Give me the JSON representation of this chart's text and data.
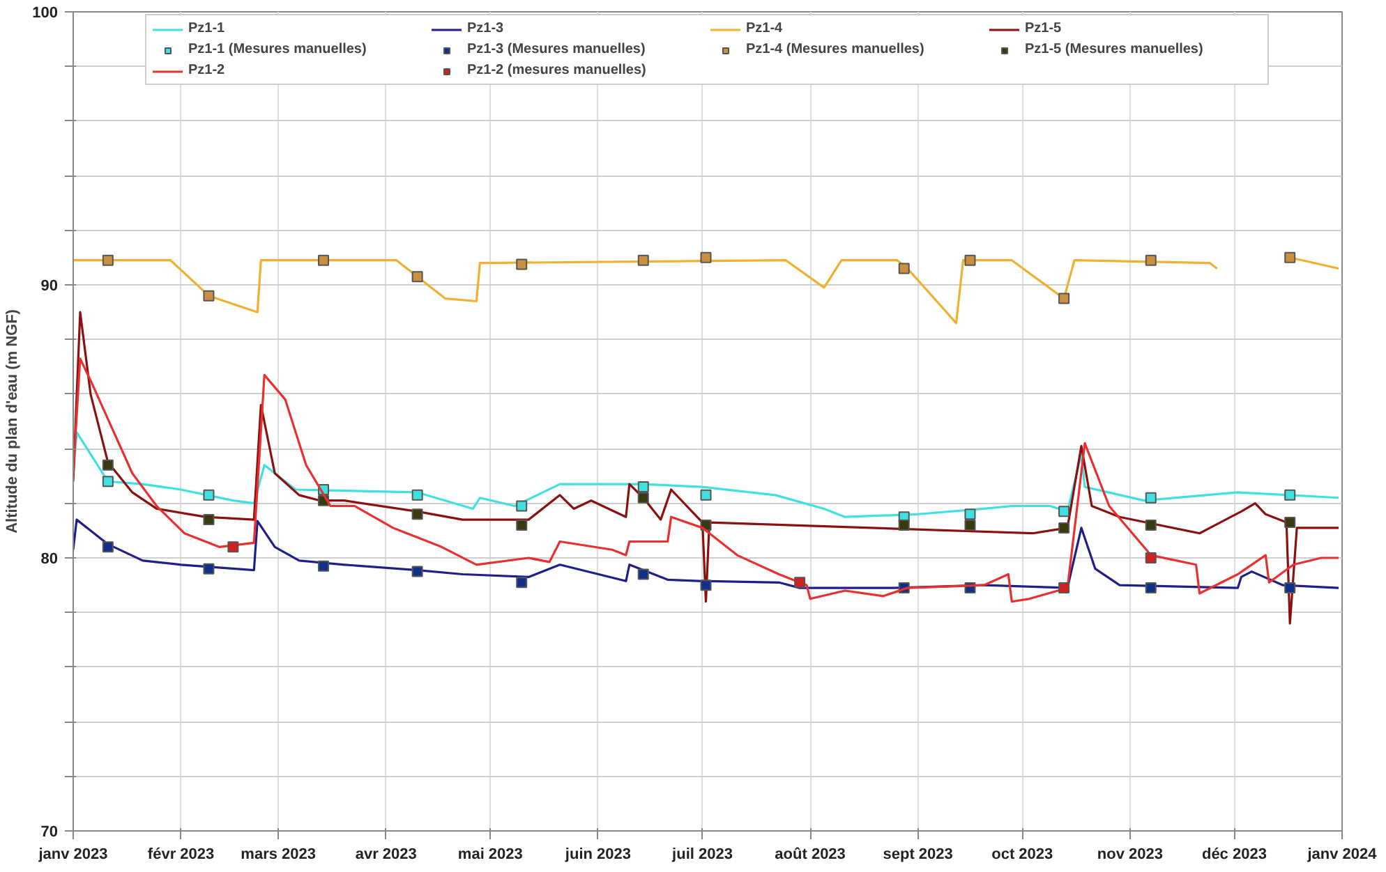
{
  "chart_data": {
    "type": "line",
    "ylabel": "Altitude du plan d'eau (m NGF)",
    "xlim": [
      "2023-01-01",
      "2024-01-01"
    ],
    "ylim": [
      70,
      100
    ],
    "xticks": [
      {
        "value": "2023-01-01",
        "label": "janv 2023"
      },
      {
        "value": "2023-02-01",
        "label": "févr 2023"
      },
      {
        "value": "2023-03-01",
        "label": "mars 2023"
      },
      {
        "value": "2023-04-01",
        "label": "avr 2023"
      },
      {
        "value": "2023-05-01",
        "label": "mai 2023"
      },
      {
        "value": "2023-06-01",
        "label": "juin 2023"
      },
      {
        "value": "2023-07-01",
        "label": "juil 2023"
      },
      {
        "value": "2023-08-01",
        "label": "août 2023"
      },
      {
        "value": "2023-09-01",
        "label": "sept 2023"
      },
      {
        "value": "2023-10-01",
        "label": "oct 2023"
      },
      {
        "value": "2023-11-01",
        "label": "nov 2023"
      },
      {
        "value": "2023-12-01",
        "label": "déc 2023"
      },
      {
        "value": "2024-01-01",
        "label": "janv 2024"
      }
    ],
    "yticks": [
      70,
      {
        "value": 72,
        "label": null
      },
      {
        "value": 74,
        "label": null
      },
      {
        "value": 76,
        "label": null
      },
      {
        "value": 78,
        "label": null
      },
      80,
      {
        "value": 82,
        "label": null
      },
      {
        "value": 84,
        "label": null
      },
      {
        "value": 86,
        "label": null
      },
      {
        "value": 88,
        "label": null
      },
      90,
      {
        "value": 92,
        "label": null
      },
      {
        "value": 94,
        "label": null
      },
      {
        "value": 96,
        "label": null
      },
      {
        "value": 98,
        "label": null
      },
      100
    ],
    "grid": true,
    "legend": "top",
    "line_style": "solid",
    "series": [
      {
        "name": "Pz1-1",
        "marker": "none",
        "color": "#40e0e0",
        "x": [
          "2023-01-01",
          "2023-01-02",
          "2023-01-11",
          "2023-01-21",
          "2023-02-01",
          "2023-02-16",
          "2023-02-22",
          "2023-02-25",
          "2023-03-06",
          "2023-04-10",
          "2023-04-26",
          "2023-04-28",
          "2023-05-08",
          "2023-05-21",
          "2023-06-14",
          "2023-07-01",
          "2023-07-22",
          "2023-08-05",
          "2023-08-11",
          "2023-09-01",
          "2023-09-20",
          "2023-09-28",
          "2023-10-09",
          "2023-10-14",
          "2023-10-18",
          "2023-10-19",
          "2023-11-05",
          "2023-12-02",
          "2023-12-17",
          "2023-12-31"
        ],
        "values": [
          83.0,
          84.6,
          82.8,
          82.7,
          82.5,
          82.1,
          82.0,
          83.4,
          82.5,
          82.4,
          81.8,
          82.2,
          81.9,
          82.7,
          82.7,
          82.6,
          82.3,
          81.8,
          81.5,
          81.6,
          81.8,
          81.9,
          81.9,
          81.7,
          83.8,
          82.6,
          82.1,
          82.4,
          82.3,
          82.2
        ]
      },
      {
        "name": "Pz1-3",
        "marker": "none",
        "color": "#1f1f8a",
        "x": [
          "2023-01-01",
          "2023-01-02",
          "2023-01-11",
          "2023-01-21",
          "2023-02-01",
          "2023-02-22",
          "2023-02-23",
          "2023-02-28",
          "2023-03-07",
          "2023-03-20",
          "2023-04-10",
          "2023-04-23",
          "2023-05-12",
          "2023-05-21",
          "2023-06-09",
          "2023-06-10",
          "2023-06-21",
          "2023-07-01",
          "2023-07-23",
          "2023-07-29",
          "2023-08-25",
          "2023-09-20",
          "2023-10-14",
          "2023-10-18",
          "2023-10-22",
          "2023-10-29",
          "2023-12-02",
          "2023-12-03",
          "2023-12-06",
          "2023-12-15",
          "2023-12-31"
        ],
        "values": [
          80.3,
          81.4,
          80.5,
          79.9,
          79.75,
          79.55,
          81.35,
          80.4,
          79.9,
          79.75,
          79.55,
          79.4,
          79.3,
          79.75,
          79.15,
          79.75,
          79.2,
          79.15,
          79.1,
          78.9,
          78.9,
          79.0,
          78.9,
          81.1,
          79.6,
          79.0,
          78.9,
          79.3,
          79.5,
          79.0,
          78.9
        ]
      },
      {
        "name": "Pz1-4",
        "marker": "none",
        "color": "#f0b030",
        "x": [
          "2023-01-01",
          "2023-01-29",
          "2023-02-09",
          "2023-02-23",
          "2023-02-24",
          "2023-04-04",
          "2023-04-10",
          "2023-04-18",
          "2023-04-27",
          "2023-04-28",
          "2023-07-25",
          "2023-08-05",
          "2023-08-10",
          "2023-08-26",
          "2023-08-29",
          "2023-09-12",
          "2023-09-14",
          "2023-09-28",
          "2023-10-13",
          "2023-10-16",
          "2023-11-24",
          "2023-11-26",
          "2023-12-01",
          "2023-12-17",
          "2023-12-31"
        ],
        "values": [
          90.9,
          90.9,
          89.6,
          89.0,
          90.9,
          90.9,
          90.3,
          89.5,
          89.4,
          90.8,
          90.9,
          89.9,
          90.9,
          90.9,
          90.6,
          88.6,
          90.9,
          90.9,
          89.5,
          90.9,
          90.8,
          90.6,
          null,
          91.0,
          90.6
        ]
      },
      {
        "name": "Pz1-5",
        "marker": "none",
        "color": "#8b1010",
        "x": [
          "2023-01-01",
          "2023-01-03",
          "2023-01-06",
          "2023-01-11",
          "2023-01-18",
          "2023-01-25",
          "2023-02-08",
          "2023-02-22",
          "2023-02-24",
          "2023-02-28",
          "2023-03-07",
          "2023-03-13",
          "2023-03-20",
          "2023-04-10",
          "2023-04-23",
          "2023-05-12",
          "2023-05-21",
          "2023-05-25",
          "2023-05-30",
          "2023-06-09",
          "2023-06-10",
          "2023-06-14",
          "2023-06-19",
          "2023-06-22",
          "2023-07-01",
          "2023-07-02",
          "2023-07-03",
          "2023-10-04",
          "2023-10-14",
          "2023-10-18",
          "2023-10-21",
          "2023-10-29",
          "2023-11-21",
          "2023-12-03",
          "2023-12-07",
          "2023-12-10",
          "2023-12-16",
          "2023-12-17",
          "2023-12-19",
          "2023-12-31"
        ],
        "values": [
          82.8,
          89.0,
          86.0,
          83.5,
          82.4,
          81.8,
          81.5,
          81.4,
          85.6,
          83.1,
          82.3,
          82.1,
          82.1,
          81.7,
          81.4,
          81.4,
          82.3,
          81.8,
          82.1,
          81.5,
          82.7,
          82.2,
          81.4,
          82.5,
          81.3,
          78.4,
          81.3,
          80.9,
          81.1,
          84.1,
          81.9,
          81.5,
          80.9,
          81.7,
          82.0,
          81.6,
          81.3,
          77.6,
          81.1,
          81.1
        ]
      },
      {
        "name": "Pz1-1 (Mesures manuelles)",
        "type": "scatter",
        "marker": "square",
        "color": "#40e0e0",
        "x": [
          "2023-01-11",
          "2023-02-09",
          "2023-03-14",
          "2023-04-10",
          "2023-05-10",
          "2023-06-14",
          "2023-07-02",
          "2023-08-28",
          "2023-09-16",
          "2023-10-13",
          "2023-11-07",
          "2023-12-17"
        ],
        "values": [
          82.8,
          82.3,
          82.5,
          82.3,
          81.9,
          82.6,
          82.3,
          81.5,
          81.6,
          81.7,
          82.2,
          82.3
        ]
      },
      {
        "name": "Pz1-3 (Mesures manuelles)",
        "type": "scatter",
        "marker": "square",
        "color": "#10308a",
        "x": [
          "2023-01-11",
          "2023-02-09",
          "2023-03-14",
          "2023-04-10",
          "2023-05-10",
          "2023-06-14",
          "2023-07-02",
          "2023-08-28",
          "2023-09-16",
          "2023-11-07",
          "2023-12-17"
        ],
        "values": [
          80.4,
          79.6,
          79.7,
          79.5,
          79.1,
          79.4,
          79.0,
          78.9,
          78.9,
          78.9,
          78.9
        ]
      },
      {
        "name": "Pz1-4 (Mesures manuelles)",
        "type": "scatter",
        "marker": "square",
        "color": "#c89040",
        "x": [
          "2023-01-11",
          "2023-02-09",
          "2023-03-14",
          "2023-04-10",
          "2023-05-10",
          "2023-06-14",
          "2023-07-02",
          "2023-08-28",
          "2023-09-16",
          "2023-10-13",
          "2023-11-07",
          "2023-12-17"
        ],
        "values": [
          90.9,
          89.6,
          90.9,
          90.3,
          90.75,
          90.9,
          91.0,
          90.6,
          90.9,
          89.5,
          90.9,
          91.0
        ]
      },
      {
        "name": "Pz1-5 (Mesures manuelles)",
        "type": "scatter",
        "marker": "square",
        "color": "#3a3a10",
        "x": [
          "2023-01-11",
          "2023-02-09",
          "2023-03-14",
          "2023-04-10",
          "2023-05-10",
          "2023-06-14",
          "2023-07-02",
          "2023-08-28",
          "2023-09-16",
          "2023-10-13",
          "2023-11-07",
          "2023-12-17"
        ],
        "values": [
          83.4,
          81.4,
          82.1,
          81.6,
          81.2,
          82.2,
          81.2,
          81.2,
          81.2,
          81.1,
          81.2,
          81.3
        ]
      },
      {
        "name": "Pz1-2",
        "marker": "none",
        "color": "#e83030",
        "x": [
          "2023-01-01",
          "2023-01-03",
          "2023-01-06",
          "2023-01-12",
          "2023-01-18",
          "2023-01-25",
          "2023-02-02",
          "2023-02-12",
          "2023-02-22",
          "2023-02-25",
          "2023-03-03",
          "2023-03-09",
          "2023-03-16",
          "2023-03-23",
          "2023-04-03",
          "2023-04-17",
          "2023-04-27",
          "2023-05-12",
          "2023-05-18",
          "2023-05-21",
          "2023-06-05",
          "2023-06-09",
          "2023-06-10",
          "2023-06-21",
          "2023-06-22",
          "2023-07-01",
          "2023-07-11",
          "2023-07-23",
          "2023-07-31",
          "2023-08-01",
          "2023-08-11",
          "2023-08-22",
          "2023-08-29",
          "2023-09-20",
          "2023-09-27",
          "2023-09-28",
          "2023-10-03",
          "2023-10-14",
          "2023-10-19",
          "2023-10-26",
          "2023-11-07",
          "2023-11-20",
          "2023-11-21",
          "2023-12-02",
          "2023-12-10",
          "2023-12-11",
          "2023-12-18",
          "2023-12-26",
          "2023-12-31"
        ],
        "values": [
          83.1,
          87.3,
          86.5,
          84.8,
          83.1,
          81.9,
          80.9,
          80.4,
          80.55,
          86.7,
          85.8,
          83.4,
          81.9,
          81.9,
          81.1,
          80.4,
          79.75,
          80.0,
          79.85,
          80.6,
          80.3,
          80.1,
          80.6,
          80.6,
          81.5,
          81.1,
          80.1,
          79.4,
          79.0,
          78.5,
          78.8,
          78.6,
          78.9,
          79.0,
          79.4,
          78.4,
          78.5,
          78.9,
          84.2,
          81.9,
          80.1,
          79.75,
          78.7,
          79.4,
          80.1,
          79.1,
          79.75,
          80.0,
          80.0
        ]
      },
      {
        "name": "Pz1-2 (mesures manuelles)",
        "type": "scatter",
        "marker": "square",
        "color": "#d02020",
        "x": [
          "2023-02-16",
          "2023-07-29",
          "2023-10-13",
          "2023-11-07"
        ],
        "values": [
          80.4,
          79.1,
          78.9,
          80.0
        ]
      }
    ]
  }
}
